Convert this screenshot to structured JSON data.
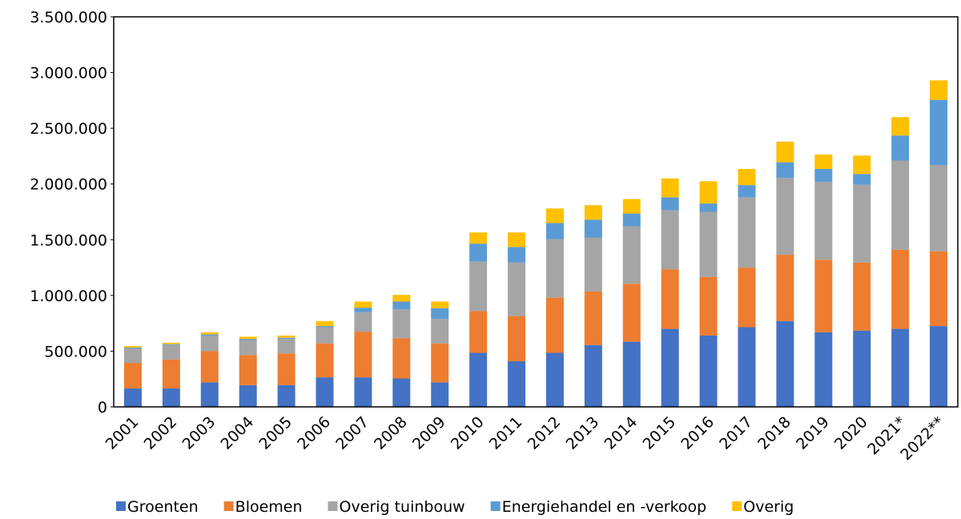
{
  "chart_data": {
    "type": "stacked_bar",
    "categories": [
      "2001",
      "2002",
      "2003",
      "2004",
      "2005",
      "2006",
      "2007",
      "2008",
      "2009",
      "2010",
      "2011",
      "2012",
      "2013",
      "2014",
      "2015",
      "2016",
      "2017",
      "2018",
      "2019",
      "2020",
      "2021*",
      "2022**"
    ],
    "series": [
      {
        "name": "Groenten",
        "color": "#4472c4",
        "values": [
          165000,
          165000,
          220000,
          195000,
          195000,
          265000,
          265000,
          255000,
          220000,
          485000,
          410000,
          485000,
          555000,
          585000,
          700000,
          640000,
          715000,
          770000,
          670000,
          685000,
          700000,
          725000
        ]
      },
      {
        "name": "Bloemen",
        "color": "#ed7d31",
        "values": [
          230000,
          260000,
          280000,
          270000,
          285000,
          305000,
          410000,
          360000,
          350000,
          375000,
          405000,
          495000,
          480000,
          520000,
          535000,
          525000,
          535000,
          595000,
          650000,
          610000,
          710000,
          670000
        ]
      },
      {
        "name": "Overig tuinbouw",
        "color": "#a5a5a5",
        "values": [
          130000,
          130000,
          140000,
          135000,
          130000,
          145000,
          175000,
          260000,
          220000,
          445000,
          480000,
          525000,
          485000,
          515000,
          530000,
          585000,
          630000,
          690000,
          700000,
          700000,
          800000,
          775000
        ]
      },
      {
        "name": "Energiehandel en -verkoop",
        "color": "#5b9bd5",
        "values": [
          7000,
          7000,
          10000,
          10000,
          10000,
          10000,
          40000,
          70000,
          95000,
          160000,
          140000,
          145000,
          160000,
          115000,
          115000,
          75000,
          110000,
          140000,
          115000,
          95000,
          225000,
          585000
        ]
      },
      {
        "name": "Overig",
        "color": "#ffc000",
        "values": [
          13000,
          13000,
          20000,
          20000,
          20000,
          45000,
          55000,
          60000,
          60000,
          100000,
          130000,
          130000,
          130000,
          130000,
          170000,
          200000,
          145000,
          185000,
          130000,
          165000,
          165000,
          175000
        ]
      }
    ],
    "ylim": [
      0,
      3500000
    ],
    "yticks": [
      0,
      {
        "value": 500000,
        "label": "500.000"
      },
      {
        "value": 1000000,
        "label": "1.000.000"
      },
      {
        "value": 1500000,
        "label": "1.500.000"
      },
      {
        "value": 2000000,
        "label": "2.000.000"
      },
      {
        "value": 2500000,
        "label": "2.500.000"
      },
      {
        "value": 3000000,
        "label": "3.000.000"
      },
      {
        "value": 3500000,
        "label": "3.500.000"
      }
    ],
    "legend": "bottom"
  }
}
